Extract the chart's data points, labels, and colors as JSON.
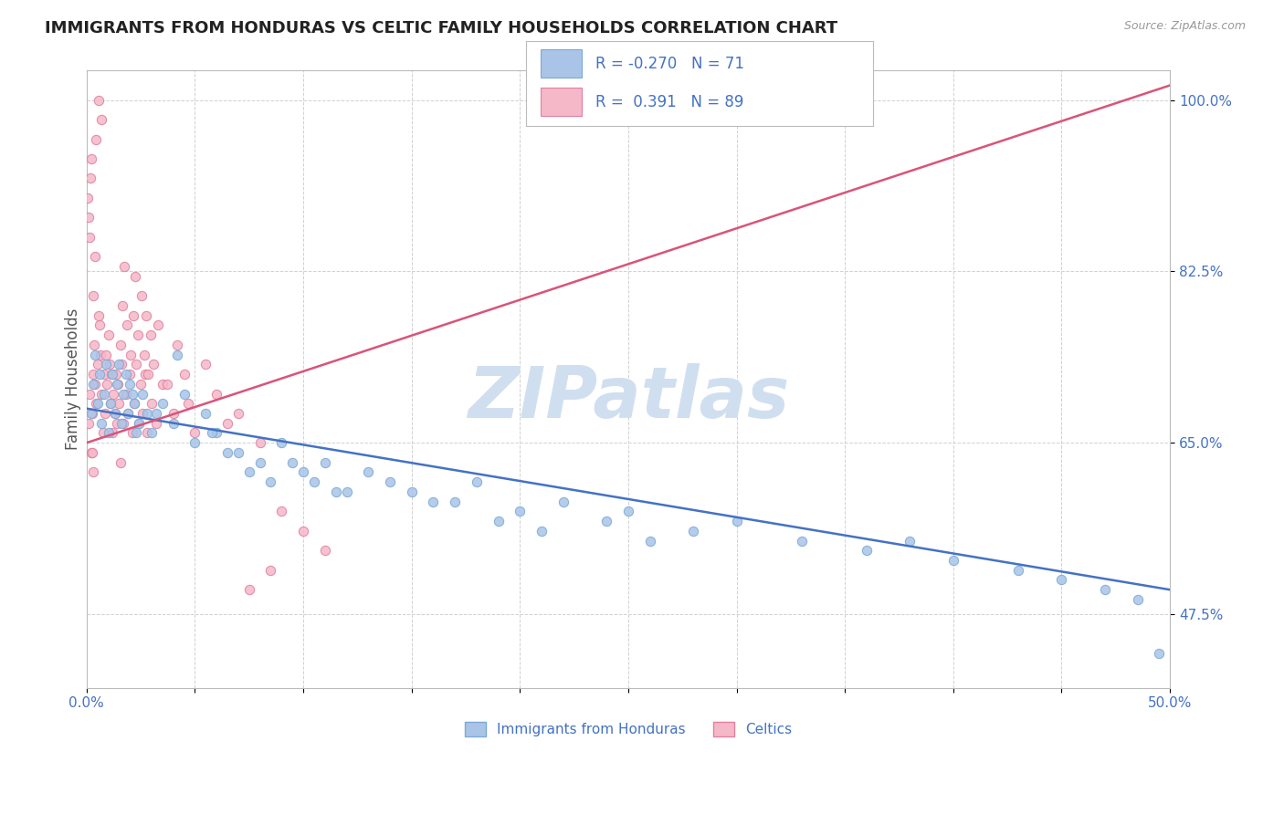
{
  "title": "IMMIGRANTS FROM HONDURAS VS CELTIC FAMILY HOUSEHOLDS CORRELATION CHART",
  "source_text": "Source: ZipAtlas.com",
  "ylabel": "Family Households",
  "xlim": [
    0.0,
    50.0
  ],
  "ylim": [
    40.0,
    103.0
  ],
  "yticks": [
    47.5,
    65.0,
    82.5,
    100.0
  ],
  "xticks": [
    0.0,
    5.0,
    10.0,
    15.0,
    20.0,
    25.0,
    30.0,
    35.0,
    40.0,
    45.0,
    50.0
  ],
  "series1_color": "#aac4e8",
  "series1_edge": "#7aaad4",
  "series2_color": "#f5b8c8",
  "series2_edge": "#e080a0",
  "series1_label": "Immigrants from Honduras",
  "series2_label": "Celtics",
  "series1_R": -0.27,
  "series1_N": 71,
  "series2_R": 0.391,
  "series2_N": 89,
  "trendline1_color": "#4472c4",
  "trendline2_color": "#d9547a",
  "trendline1_y0": 68.5,
  "trendline1_y1": 50.0,
  "trendline2_y0": 65.0,
  "trendline2_y1": 101.5,
  "watermark": "ZIPatlas",
  "watermark_color": "#d0dff0",
  "background_color": "#ffffff",
  "title_color": "#222222",
  "axis_color": "#4472c4",
  "legend_text_color": "#4472c4",
  "grid_color": "#cccccc",
  "series1_x": [
    0.2,
    0.3,
    0.4,
    0.5,
    0.6,
    0.7,
    0.8,
    0.9,
    1.0,
    1.1,
    1.2,
    1.3,
    1.4,
    1.5,
    1.6,
    1.7,
    1.8,
    1.9,
    2.0,
    2.2,
    2.4,
    2.6,
    2.8,
    3.0,
    3.5,
    4.0,
    4.5,
    5.0,
    5.5,
    6.0,
    7.0,
    8.0,
    9.0,
    10.0,
    11.0,
    12.0,
    13.0,
    14.0,
    15.0,
    17.0,
    18.0,
    20.0,
    22.0,
    25.0,
    28.0,
    30.0,
    33.0,
    36.0,
    38.0,
    40.0,
    43.0,
    45.0,
    47.0,
    48.5,
    2.1,
    2.3,
    6.5,
    7.5,
    8.5,
    9.5,
    10.5,
    11.5,
    16.0,
    19.0,
    21.0,
    24.0,
    4.2,
    3.2,
    5.8,
    26.0,
    49.5
  ],
  "series1_y": [
    68.0,
    71.0,
    74.0,
    69.0,
    72.0,
    67.0,
    70.0,
    73.0,
    66.0,
    69.0,
    72.0,
    68.0,
    71.0,
    73.0,
    67.0,
    70.0,
    72.0,
    68.0,
    71.0,
    69.0,
    67.0,
    70.0,
    68.0,
    66.0,
    69.0,
    67.0,
    70.0,
    65.0,
    68.0,
    66.0,
    64.0,
    63.0,
    65.0,
    62.0,
    63.0,
    60.0,
    62.0,
    61.0,
    60.0,
    59.0,
    61.0,
    58.0,
    59.0,
    58.0,
    56.0,
    57.0,
    55.0,
    54.0,
    55.0,
    53.0,
    52.0,
    51.0,
    50.0,
    49.0,
    70.0,
    66.0,
    64.0,
    62.0,
    61.0,
    63.0,
    61.0,
    60.0,
    59.0,
    57.0,
    56.0,
    57.0,
    74.0,
    68.0,
    66.0,
    55.0,
    43.5
  ],
  "series2_x": [
    0.1,
    0.15,
    0.2,
    0.25,
    0.3,
    0.35,
    0.4,
    0.45,
    0.5,
    0.6,
    0.65,
    0.7,
    0.75,
    0.8,
    0.85,
    0.9,
    0.95,
    1.0,
    1.05,
    1.1,
    1.15,
    1.2,
    1.25,
    1.3,
    1.35,
    1.4,
    1.45,
    1.5,
    1.6,
    1.7,
    1.8,
    1.9,
    2.0,
    2.1,
    2.2,
    2.3,
    2.4,
    2.5,
    2.6,
    2.7,
    2.8,
    3.0,
    3.2,
    3.5,
    4.0,
    4.5,
    5.0,
    6.0,
    7.0,
    8.0,
    0.55,
    0.3,
    0.4,
    1.55,
    1.65,
    1.75,
    1.85,
    2.05,
    2.15,
    2.25,
    2.35,
    2.55,
    2.65,
    2.75,
    2.85,
    2.95,
    3.1,
    3.3,
    3.7,
    4.2,
    4.7,
    5.5,
    6.5,
    0.05,
    0.08,
    0.12,
    0.18,
    0.22,
    0.28,
    0.32,
    9.0,
    11.0,
    10.0,
    7.5,
    8.5,
    1.55,
    0.45,
    0.7,
    0.55
  ],
  "series2_y": [
    67.0,
    70.0,
    64.0,
    68.0,
    72.0,
    75.0,
    71.0,
    69.0,
    73.0,
    77.0,
    74.0,
    70.0,
    66.0,
    72.0,
    68.0,
    74.0,
    71.0,
    76.0,
    73.0,
    69.0,
    72.0,
    66.0,
    70.0,
    68.0,
    72.0,
    67.0,
    71.0,
    69.0,
    73.0,
    67.0,
    70.0,
    68.0,
    72.0,
    66.0,
    69.0,
    73.0,
    67.0,
    71.0,
    68.0,
    72.0,
    66.0,
    69.0,
    67.0,
    71.0,
    68.0,
    72.0,
    66.0,
    70.0,
    68.0,
    65.0,
    78.0,
    80.0,
    84.0,
    75.0,
    79.0,
    83.0,
    77.0,
    74.0,
    78.0,
    82.0,
    76.0,
    80.0,
    74.0,
    78.0,
    72.0,
    76.0,
    73.0,
    77.0,
    71.0,
    75.0,
    69.0,
    73.0,
    67.0,
    90.0,
    88.0,
    86.0,
    92.0,
    94.0,
    64.0,
    62.0,
    58.0,
    54.0,
    56.0,
    50.0,
    52.0,
    63.0,
    96.0,
    98.0,
    100.0
  ]
}
